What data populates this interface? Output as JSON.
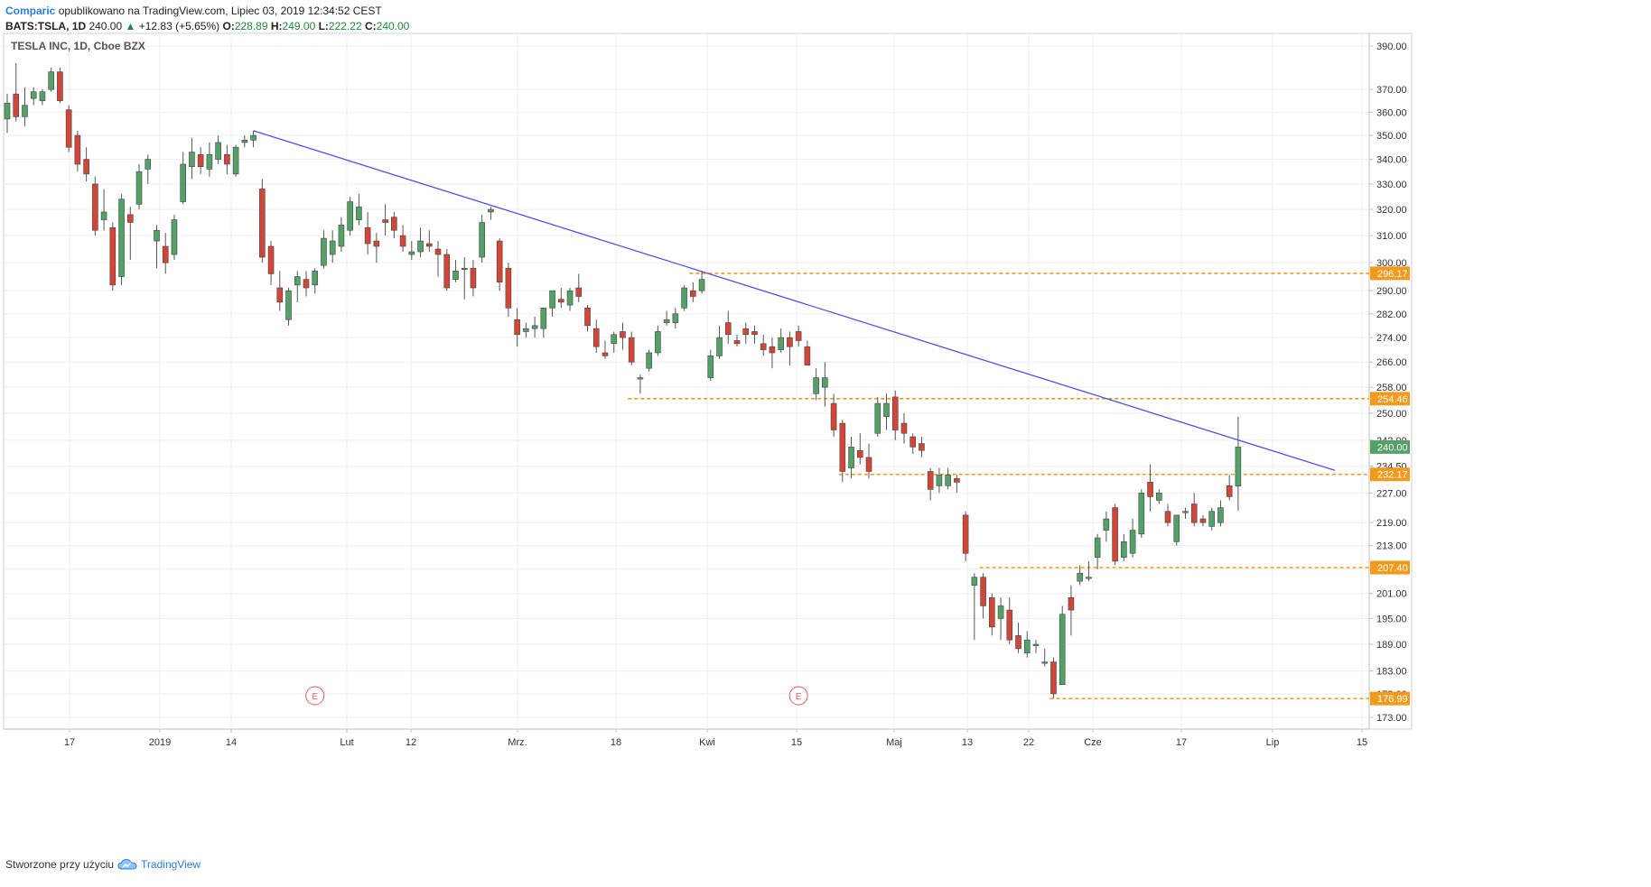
{
  "header": {
    "brand": "Comparic",
    "published": "opublikowano na TradingView.com, Lipiec 03, 2019 12:34:52 CEST",
    "symbol": "BATS:TSLA, 1D",
    "last": "240.00",
    "arrow": "▲",
    "change": "+12.83 (+5.65%)",
    "o_label": "O:",
    "o": "228.89",
    "h_label": "H:",
    "h": "249.00",
    "l_label": "L:",
    "l": "222.22",
    "c_label": "C:",
    "c": "240.00"
  },
  "footer": {
    "created": "Stworzone przy użyciu",
    "brand": "TradingView",
    "icon": "tradingview-cloud-icon"
  },
  "colors": {
    "up": "#53a167",
    "down": "#d2463a",
    "trendline": "#5151e3",
    "level": "#f29a1c",
    "grid": "#eeeeee",
    "price_badge": "#53a167"
  },
  "chart_data": {
    "type": "candlestick",
    "title": "TESLA INC, 1D, Cboe BZX",
    "x_ticks": [
      "17",
      "2019",
      "14",
      "Lut",
      "12",
      "Mrz.",
      "18",
      "Kwi",
      "15",
      "Maj",
      "13",
      "22",
      "Cze",
      "17",
      "Lip",
      "15"
    ],
    "y_ticks": [
      390,
      370,
      360,
      350,
      340,
      330,
      320,
      310,
      300,
      290,
      282,
      274,
      266,
      258,
      250,
      242,
      234.5,
      227,
      219,
      213,
      207,
      201,
      195,
      189,
      183,
      178,
      173
    ],
    "y_tick_labels": [
      "390.00",
      "370.00",
      "360.00",
      "350.00",
      "340.00",
      "330.00",
      "320.00",
      "310.00",
      "300.00",
      "290.00",
      "282.00",
      "274.00",
      "266.00",
      "258.00",
      "250.00",
      "242.00",
      "234.50",
      "227.00",
      "219.00",
      "213.00",
      "207.00",
      "201.00",
      "195.00",
      "189.00",
      "183.00",
      "178.00",
      "173.00"
    ],
    "y_scale": "log",
    "grid": true,
    "candles": [
      {
        "o": 357,
        "h": 368,
        "l": 351,
        "c": 364
      },
      {
        "o": 368,
        "h": 382,
        "l": 356,
        "c": 358
      },
      {
        "o": 358,
        "h": 371,
        "l": 354,
        "c": 363
      },
      {
        "o": 366,
        "h": 371,
        "l": 363,
        "c": 369
      },
      {
        "o": 365,
        "h": 370,
        "l": 363,
        "c": 369
      },
      {
        "o": 370,
        "h": 380,
        "l": 369,
        "c": 378
      },
      {
        "o": 378,
        "h": 380,
        "l": 364,
        "c": 365
      },
      {
        "o": 361,
        "h": 363,
        "l": 343,
        "c": 345
      },
      {
        "o": 350,
        "h": 352,
        "l": 335,
        "c": 338
      },
      {
        "o": 340,
        "h": 345,
        "l": 331,
        "c": 334
      },
      {
        "o": 330,
        "h": 333,
        "l": 310,
        "c": 312
      },
      {
        "o": 316,
        "h": 328,
        "l": 312,
        "c": 319
      },
      {
        "o": 313,
        "h": 315,
        "l": 290,
        "c": 292
      },
      {
        "o": 295,
        "h": 326,
        "l": 292,
        "c": 324
      },
      {
        "o": 318,
        "h": 321,
        "l": 301,
        "c": 315
      },
      {
        "o": 322,
        "h": 338,
        "l": 320,
        "c": 335
      },
      {
        "o": 336,
        "h": 342,
        "l": 330,
        "c": 340
      },
      {
        "o": 308,
        "h": 314,
        "l": 298,
        "c": 312
      },
      {
        "o": 306,
        "h": 311,
        "l": 296,
        "c": 300
      },
      {
        "o": 303,
        "h": 318,
        "l": 301,
        "c": 316
      },
      {
        "o": 323,
        "h": 343,
        "l": 322,
        "c": 338
      },
      {
        "o": 337,
        "h": 349,
        "l": 332,
        "c": 343
      },
      {
        "o": 342,
        "h": 345,
        "l": 334,
        "c": 337
      },
      {
        "o": 336,
        "h": 347,
        "l": 333,
        "c": 342
      },
      {
        "o": 340,
        "h": 350,
        "l": 338,
        "c": 347
      },
      {
        "o": 342,
        "h": 346,
        "l": 334,
        "c": 338
      },
      {
        "o": 334,
        "h": 346,
        "l": 333,
        "c": 345
      },
      {
        "o": 347,
        "h": 350,
        "l": 345,
        "c": 348
      },
      {
        "o": 348,
        "h": 352,
        "l": 345,
        "c": 350
      },
      {
        "o": 328,
        "h": 332,
        "l": 300,
        "c": 302
      },
      {
        "o": 306,
        "h": 308,
        "l": 292,
        "c": 296
      },
      {
        "o": 291,
        "h": 297,
        "l": 283,
        "c": 286
      },
      {
        "o": 280,
        "h": 291,
        "l": 278,
        "c": 290
      },
      {
        "o": 292,
        "h": 297,
        "l": 286,
        "c": 295
      },
      {
        "o": 294,
        "h": 297,
        "l": 288,
        "c": 291
      },
      {
        "o": 292,
        "h": 298,
        "l": 289,
        "c": 297
      },
      {
        "o": 299,
        "h": 312,
        "l": 298,
        "c": 309
      },
      {
        "o": 303,
        "h": 312,
        "l": 300,
        "c": 308
      },
      {
        "o": 306,
        "h": 317,
        "l": 304,
        "c": 314
      },
      {
        "o": 312,
        "h": 325,
        "l": 310,
        "c": 323
      },
      {
        "o": 316,
        "h": 326,
        "l": 314,
        "c": 321
      },
      {
        "o": 313,
        "h": 319,
        "l": 303,
        "c": 307
      },
      {
        "o": 308,
        "h": 311,
        "l": 300,
        "c": 306
      },
      {
        "o": 316,
        "h": 322,
        "l": 310,
        "c": 315
      },
      {
        "o": 317,
        "h": 319,
        "l": 309,
        "c": 312
      },
      {
        "o": 310,
        "h": 314,
        "l": 304,
        "c": 306
      },
      {
        "o": 303,
        "h": 308,
        "l": 301,
        "c": 304
      },
      {
        "o": 304,
        "h": 313,
        "l": 302,
        "c": 308
      },
      {
        "o": 307,
        "h": 312,
        "l": 304,
        "c": 306
      },
      {
        "o": 305,
        "h": 308,
        "l": 295,
        "c": 303
      },
      {
        "o": 303,
        "h": 305,
        "l": 290,
        "c": 291
      },
      {
        "o": 294,
        "h": 301,
        "l": 293,
        "c": 297
      },
      {
        "o": 298,
        "h": 302,
        "l": 287,
        "c": 298
      },
      {
        "o": 298,
        "h": 301,
        "l": 288,
        "c": 291
      },
      {
        "o": 302,
        "h": 318,
        "l": 300,
        "c": 315
      },
      {
        "o": 319,
        "h": 321,
        "l": 316,
        "c": 320
      },
      {
        "o": 308,
        "h": 309,
        "l": 290,
        "c": 293
      },
      {
        "o": 298,
        "h": 300,
        "l": 281,
        "c": 284
      },
      {
        "o": 280,
        "h": 284,
        "l": 271,
        "c": 275
      },
      {
        "o": 276,
        "h": 279,
        "l": 274,
        "c": 277
      },
      {
        "o": 277,
        "h": 281,
        "l": 274,
        "c": 278
      },
      {
        "o": 277,
        "h": 283,
        "l": 274,
        "c": 284
      },
      {
        "o": 284,
        "h": 290,
        "l": 281,
        "c": 290
      },
      {
        "o": 287,
        "h": 291,
        "l": 284,
        "c": 286
      },
      {
        "o": 285,
        "h": 291,
        "l": 283,
        "c": 290
      },
      {
        "o": 291,
        "h": 296,
        "l": 286,
        "c": 288
      },
      {
        "o": 284,
        "h": 285,
        "l": 276,
        "c": 278
      },
      {
        "o": 277,
        "h": 280,
        "l": 269,
        "c": 271
      },
      {
        "o": 269,
        "h": 273,
        "l": 267,
        "c": 268
      },
      {
        "o": 272,
        "h": 276,
        "l": 269,
        "c": 275
      },
      {
        "o": 276,
        "h": 279,
        "l": 270,
        "c": 274
      },
      {
        "o": 274,
        "h": 276,
        "l": 265,
        "c": 266
      },
      {
        "o": 261,
        "h": 262,
        "l": 256,
        "c": 261
      },
      {
        "o": 264,
        "h": 270,
        "l": 263,
        "c": 269
      },
      {
        "o": 269,
        "h": 278,
        "l": 268,
        "c": 276
      },
      {
        "o": 279,
        "h": 283,
        "l": 278,
        "c": 280
      },
      {
        "o": 279,
        "h": 284,
        "l": 277,
        "c": 282
      },
      {
        "o": 284,
        "h": 292,
        "l": 283,
        "c": 291
      },
      {
        "o": 290,
        "h": 293,
        "l": 286,
        "c": 288
      },
      {
        "o": 290,
        "h": 297,
        "l": 289,
        "c": 294
      },
      {
        "o": 261,
        "h": 270,
        "l": 260,
        "c": 268
      },
      {
        "o": 268,
        "h": 278,
        "l": 267,
        "c": 274
      },
      {
        "o": 279,
        "h": 283,
        "l": 272,
        "c": 275
      },
      {
        "o": 273,
        "h": 275,
        "l": 271,
        "c": 272
      },
      {
        "o": 277,
        "h": 279,
        "l": 272,
        "c": 275
      },
      {
        "o": 276,
        "h": 278,
        "l": 272,
        "c": 275
      },
      {
        "o": 272,
        "h": 275,
        "l": 268,
        "c": 270
      },
      {
        "o": 271,
        "h": 274,
        "l": 264,
        "c": 269
      },
      {
        "o": 270,
        "h": 277,
        "l": 269,
        "c": 274
      },
      {
        "o": 274,
        "h": 276,
        "l": 265,
        "c": 271
      },
      {
        "o": 276,
        "h": 278,
        "l": 271,
        "c": 273
      },
      {
        "o": 271,
        "h": 273,
        "l": 265,
        "c": 265
      },
      {
        "o": 256,
        "h": 264,
        "l": 254,
        "c": 261
      },
      {
        "o": 258,
        "h": 266,
        "l": 252,
        "c": 261
      },
      {
        "o": 253,
        "h": 256,
        "l": 243,
        "c": 245
      },
      {
        "o": 247,
        "h": 248,
        "l": 230,
        "c": 233
      },
      {
        "o": 234,
        "h": 243,
        "l": 231,
        "c": 240
      },
      {
        "o": 239,
        "h": 244,
        "l": 235,
        "c": 237
      },
      {
        "o": 237,
        "h": 241,
        "l": 231,
        "c": 233
      },
      {
        "o": 244,
        "h": 255,
        "l": 243,
        "c": 253
      },
      {
        "o": 249,
        "h": 256,
        "l": 245,
        "c": 253
      },
      {
        "o": 255,
        "h": 257,
        "l": 242,
        "c": 245
      },
      {
        "o": 247,
        "h": 250,
        "l": 241,
        "c": 244
      },
      {
        "o": 243,
        "h": 244,
        "l": 238,
        "c": 240
      },
      {
        "o": 241,
        "h": 243,
        "l": 237,
        "c": 239
      },
      {
        "o": 233,
        "h": 234,
        "l": 225,
        "c": 228
      },
      {
        "o": 229,
        "h": 234,
        "l": 227,
        "c": 232
      },
      {
        "o": 229,
        "h": 234,
        "l": 228,
        "c": 232
      },
      {
        "o": 231,
        "h": 232,
        "l": 227,
        "c": 230
      },
      {
        "o": 221,
        "h": 222,
        "l": 209,
        "c": 211
      },
      {
        "o": 203,
        "h": 206,
        "l": 190,
        "c": 205
      },
      {
        "o": 205,
        "h": 206,
        "l": 195,
        "c": 198
      },
      {
        "o": 200,
        "h": 201,
        "l": 191,
        "c": 193
      },
      {
        "o": 195,
        "h": 200,
        "l": 190,
        "c": 198
      },
      {
        "o": 197,
        "h": 200,
        "l": 189,
        "c": 190
      },
      {
        "o": 191,
        "h": 194,
        "l": 187,
        "c": 188
      },
      {
        "o": 187,
        "h": 192,
        "l": 186,
        "c": 190
      },
      {
        "o": 189,
        "h": 190,
        "l": 187,
        "c": 189
      },
      {
        "o": 185,
        "h": 188,
        "l": 184,
        "c": 185
      },
      {
        "o": 185,
        "h": 186,
        "l": 177,
        "c": 178
      },
      {
        "o": 180,
        "h": 198,
        "l": 180,
        "c": 196
      },
      {
        "o": 200,
        "h": 203,
        "l": 191,
        "c": 197
      },
      {
        "o": 204,
        "h": 208,
        "l": 203,
        "c": 206
      },
      {
        "o": 205,
        "h": 209,
        "l": 204,
        "c": 205
      },
      {
        "o": 210,
        "h": 216,
        "l": 207,
        "c": 215
      },
      {
        "o": 217,
        "h": 222,
        "l": 214,
        "c": 220
      },
      {
        "o": 223,
        "h": 224,
        "l": 208,
        "c": 209
      },
      {
        "o": 210,
        "h": 216,
        "l": 209,
        "c": 214
      },
      {
        "o": 211,
        "h": 220,
        "l": 210,
        "c": 217
      },
      {
        "o": 216,
        "h": 228,
        "l": 215,
        "c": 227
      },
      {
        "o": 230,
        "h": 235,
        "l": 222,
        "c": 226
      },
      {
        "o": 225,
        "h": 228,
        "l": 224,
        "c": 227
      },
      {
        "o": 222,
        "h": 224,
        "l": 218,
        "c": 219
      },
      {
        "o": 214,
        "h": 221,
        "l": 213,
        "c": 221
      },
      {
        "o": 222,
        "h": 223,
        "l": 220,
        "c": 222
      },
      {
        "o": 224,
        "h": 227,
        "l": 218,
        "c": 219
      },
      {
        "o": 220,
        "h": 221,
        "l": 218,
        "c": 219
      },
      {
        "o": 218,
        "h": 223,
        "l": 217,
        "c": 222
      },
      {
        "o": 219,
        "h": 225,
        "l": 218,
        "c": 223
      },
      {
        "o": 229,
        "h": 232,
        "l": 225,
        "c": 226
      },
      {
        "o": 228.89,
        "h": 249,
        "l": 222.22,
        "c": 240
      }
    ],
    "trendline": {
      "from": {
        "candle": 28,
        "price": 352
      },
      "to": {
        "candle": 151,
        "price": 233.3
      }
    },
    "horizontal_levels": [
      {
        "price": 296.17,
        "label": "296.17",
        "from_candle": 78
      },
      {
        "price": 254.46,
        "label": "254.46",
        "from_candle": 71
      },
      {
        "price": 232.17,
        "label": "232.17",
        "from_candle": 95
      },
      {
        "price": 207.4,
        "label": "207.40",
        "from_candle": 111
      },
      {
        "price": 176.99,
        "label": "176.99",
        "from_candle": 119
      }
    ],
    "last_price": {
      "price": 240.0,
      "label": "240.00"
    },
    "earnings_markers": [
      {
        "label": "E",
        "candle": 35
      },
      {
        "label": "E",
        "candle": 90
      }
    ]
  }
}
